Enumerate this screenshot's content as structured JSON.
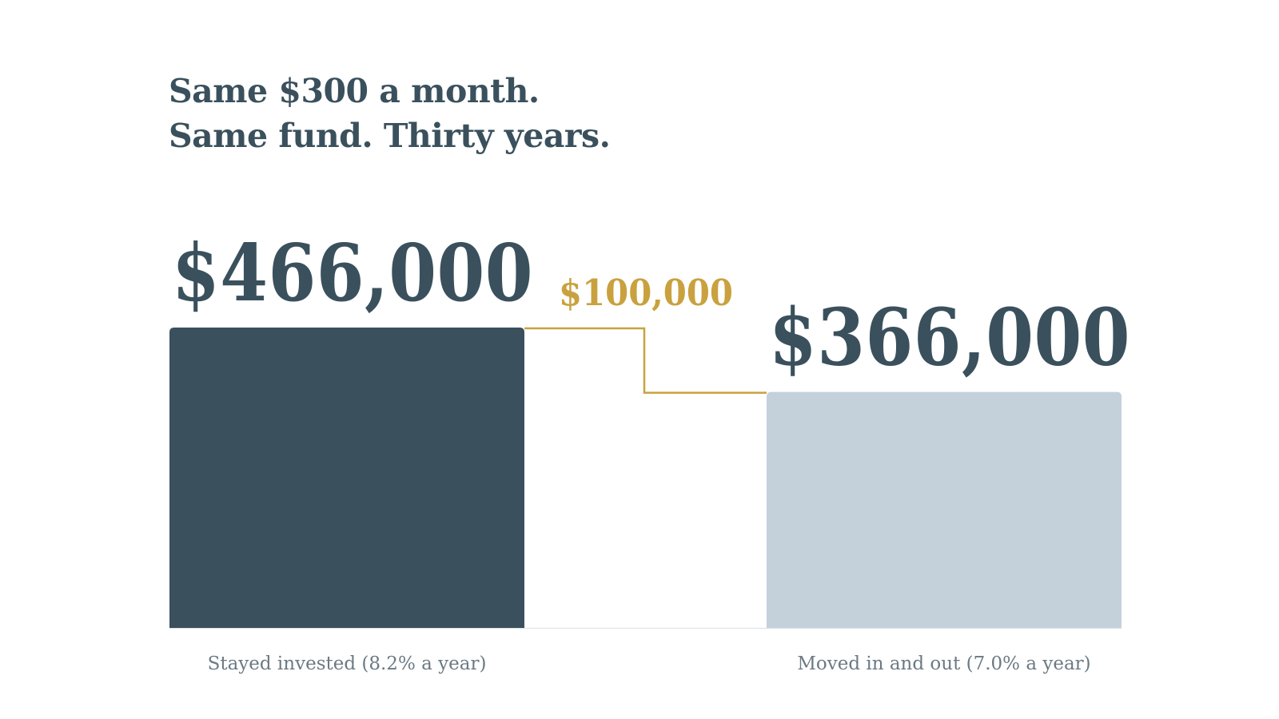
{
  "headline": {
    "line1": "Same $300 a month.",
    "line2": "Same fund. Thirty years."
  },
  "colors": {
    "primary_text": "#3a505d",
    "bar_stayed": "#3a505d",
    "bar_moved": "#c4d0da",
    "gap_accent": "#c9a13e",
    "axis_label": "#6b7a84",
    "baseline": "#e3e7ea"
  },
  "chart_data": {
    "type": "bar",
    "categories": [
      "Stayed invested (8.2% a year)",
      "Moved in and out (7.0% a year)"
    ],
    "values": [
      466000,
      366000
    ],
    "value_labels": [
      "$466,000",
      "$366,000"
    ],
    "difference": 100000,
    "difference_label": "$100,000",
    "title": "Same $300 a month. Same fund. Thirty years.",
    "xlabel": "",
    "ylabel": "",
    "grid": false,
    "legend": "none"
  }
}
